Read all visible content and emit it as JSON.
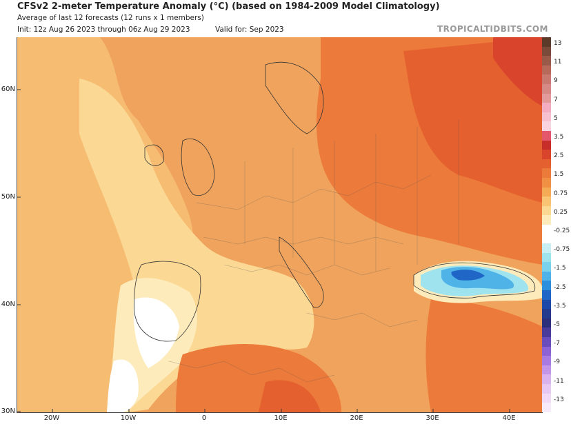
{
  "header": {
    "title": "CFSv2 2-meter Temperature Anomaly (°C) (based on 1984-2009 Model Climatology)",
    "subtitle": "Average of last 12 forecasts (12 runs x 1 members)",
    "init": "Init: 12z Aug 26 2023 through 06z Aug 29 2023",
    "valid": "Valid for: Sep 2023",
    "brand": "TROPICALTIDBITS.COM"
  },
  "axes": {
    "lat_labels": [
      "60N",
      "50N",
      "40N",
      "30N"
    ],
    "lon_labels": [
      "20W",
      "10W",
      "0",
      "10E",
      "20E",
      "30E",
      "40E"
    ]
  },
  "colorbar": {
    "labels": [
      "13",
      "11",
      "9",
      "7",
      "5",
      "3.5",
      "2.5",
      "1.5",
      "0.75",
      "0.25",
      "-0.25",
      "-0.75",
      "-1.5",
      "-2.5",
      "-3.5",
      "-5",
      "-7",
      "-9",
      "-11",
      "-13"
    ],
    "colors": [
      "#5b3a2a",
      "#7a4a3a",
      "#9a5a4a",
      "#b56a5a",
      "#c97a70",
      "#d68a85",
      "#e39a9a",
      "#f2aec0",
      "#f6c0d0",
      "#f9d4e0",
      "#e4566a",
      "#c72e2a",
      "#d9442c",
      "#e5602f",
      "#ec7a3a",
      "#f09045",
      "#f5aa55",
      "#f8c474",
      "#fbd994",
      "#fdebbb",
      "#ffffff",
      "#ffffff",
      "#c8f0f4",
      "#9fe3ee",
      "#7ad2ec",
      "#4fb3e8",
      "#2e8fdc",
      "#2066c6",
      "#1e48a8",
      "#243a8c",
      "#2c2f7a",
      "#4a3a9a",
      "#6a4cbc",
      "#8c62d4",
      "#a97ae0",
      "#c596e8",
      "#d9b2ee",
      "#e7c8f2",
      "#f0daf6",
      "#f7eafa"
    ]
  },
  "map": {
    "description_colors": {
      "ocean_warm": "#f0a35c",
      "near_zero": "#fdebbb",
      "warm_strong": "#e5602f",
      "cool": "#2e8fdc"
    }
  }
}
